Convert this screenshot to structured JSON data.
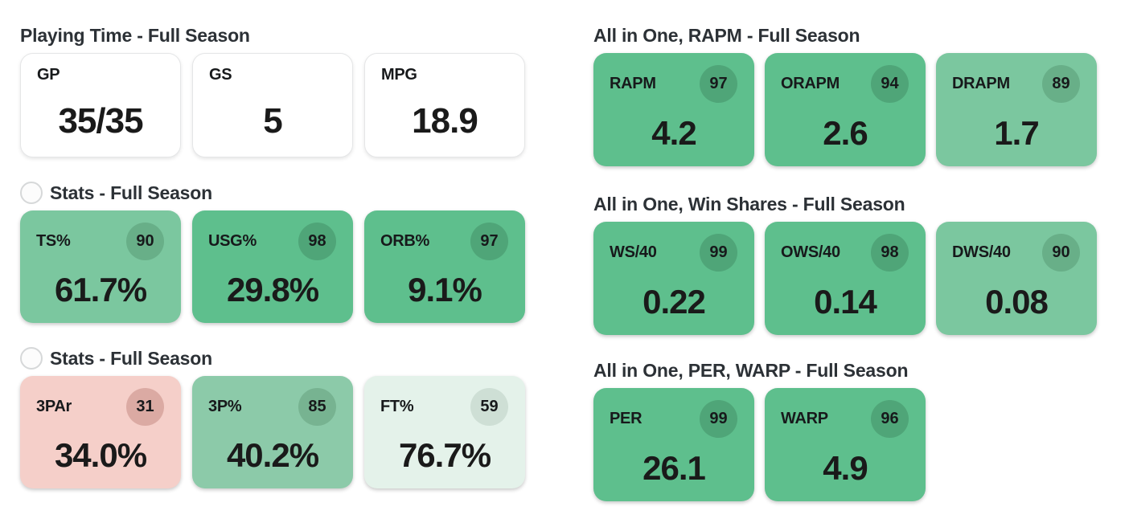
{
  "theme": {
    "page_bg": "#ffffff",
    "title_color": "#2c3136",
    "value_color": "#1a1a1a",
    "label_color": "#17191b",
    "plain_card_border": "#e5e6e7",
    "icon_border": "#d6d8d9",
    "strong_green": "#5ebf8d",
    "light_green": "#7bc79f",
    "pale_green": "#8ccaa9",
    "mint": "#e4f2ea",
    "pink": "#f5cfc9"
  },
  "icons": {
    "section_toggle": "circle-outline"
  },
  "sections": {
    "playing_time": {
      "title": "Playing Time - Full Season",
      "cards": [
        {
          "label": "GP",
          "value": "35/35"
        },
        {
          "label": "GS",
          "value": "5"
        },
        {
          "label": "MPG",
          "value": "18.9"
        }
      ]
    },
    "stats_a": {
      "title": "Stats - Full Season",
      "cards": [
        {
          "label": "TS%",
          "percentile": 90,
          "value": "61.7%",
          "bg": "#7bc79f",
          "badge_bg": "#68af88"
        },
        {
          "label": "USG%",
          "percentile": 98,
          "value": "29.8%",
          "bg": "#5ebf8d",
          "badge_bg": "#4fa578"
        },
        {
          "label": "ORB%",
          "percentile": 97,
          "value": "9.1%",
          "bg": "#5ebf8d",
          "badge_bg": "#4fa578"
        }
      ]
    },
    "stats_b": {
      "title": "Stats - Full Season",
      "cards": [
        {
          "label": "3PAr",
          "percentile": 31,
          "value": "34.0%",
          "bg": "#f5cfc9",
          "badge_bg": "#dbaaa3"
        },
        {
          "label": "3P%",
          "percentile": 85,
          "value": "40.2%",
          "bg": "#8ccaa9",
          "badge_bg": "#77b391"
        },
        {
          "label": "FT%",
          "percentile": 59,
          "value": "76.7%",
          "bg": "#e4f2ea",
          "badge_bg": "#cedfd5"
        }
      ]
    },
    "rapm": {
      "title": "All in One, RAPM - Full Season",
      "cards": [
        {
          "label": "RAPM",
          "percentile": 97,
          "value": "4.2",
          "bg": "#5ebf8d",
          "badge_bg": "#4fa578"
        },
        {
          "label": "ORAPM",
          "percentile": 94,
          "value": "2.6",
          "bg": "#5ebf8d",
          "badge_bg": "#4fa578"
        },
        {
          "label": "DRAPM",
          "percentile": 89,
          "value": "1.7",
          "bg": "#7bc79f",
          "badge_bg": "#68af88"
        }
      ]
    },
    "win_shares": {
      "title": "All in One, Win Shares - Full Season",
      "cards": [
        {
          "label": "WS/40",
          "percentile": 99,
          "value": "0.22",
          "bg": "#5ebf8d",
          "badge_bg": "#4fa578"
        },
        {
          "label": "OWS/40",
          "percentile": 98,
          "value": "0.14",
          "bg": "#5ebf8d",
          "badge_bg": "#4fa578"
        },
        {
          "label": "DWS/40",
          "percentile": 90,
          "value": "0.08",
          "bg": "#7bc79f",
          "badge_bg": "#68af88"
        }
      ]
    },
    "per_warp": {
      "title": "All in One, PER, WARP - Full Season",
      "cards": [
        {
          "label": "PER",
          "percentile": 99,
          "value": "26.1",
          "bg": "#5ebf8d",
          "badge_bg": "#4fa578"
        },
        {
          "label": "WARP",
          "percentile": 96,
          "value": "4.9",
          "bg": "#5ebf8d",
          "badge_bg": "#4fa578"
        }
      ]
    }
  }
}
